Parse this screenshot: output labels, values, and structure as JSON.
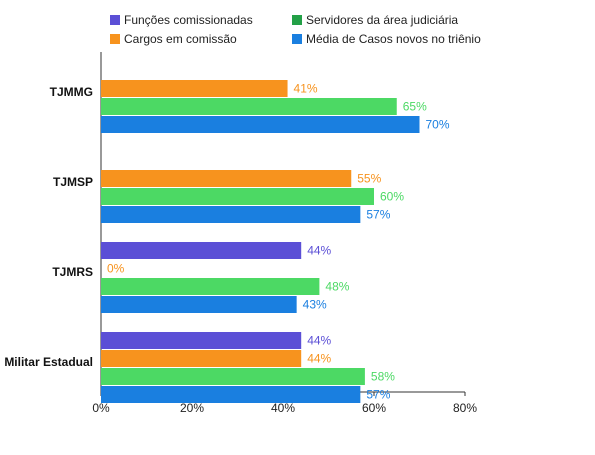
{
  "chart_data": {
    "type": "bar",
    "orientation": "horizontal",
    "categories": [
      "TJMMG",
      "TJMSP",
      "TJMRS",
      "Militar Estadual"
    ],
    "series": [
      {
        "name": "Funções comissionadas",
        "color": "#5b4fd6",
        "values": [
          null,
          null,
          44,
          44
        ],
        "labels": [
          "",
          "",
          "44%",
          "44%"
        ]
      },
      {
        "name": "Cargos em comissão",
        "color": "#f7931e",
        "values": [
          41,
          55,
          0,
          44
        ],
        "labels": [
          "41%",
          "55%",
          "0%",
          "44%"
        ]
      },
      {
        "name": "Servidores da área judiciária",
        "color": "#4cd964",
        "values": [
          65,
          60,
          48,
          58
        ],
        "labels": [
          "65%",
          "60%",
          "48%",
          "58%"
        ]
      },
      {
        "name": "Média de Casos novos no triênio",
        "color": "#1a7fe0",
        "values": [
          70,
          57,
          43,
          57
        ],
        "labels": [
          "70%",
          "57%",
          "43%",
          "57%"
        ]
      }
    ],
    "legend_labels": [
      "Funções comissionadas",
      "Servidores da área judiciária",
      "Cargos em comissão",
      "Média de Casos novos no triênio"
    ],
    "legend_colors": [
      "#5b4fd6",
      "#23a047",
      "#f7931e",
      "#1a7fe0"
    ],
    "x_ticks": [
      "0%",
      "20%",
      "40%",
      "60%",
      "80%"
    ],
    "xlim": [
      0,
      80
    ],
    "legend_position": "top",
    "grid": false,
    "label_colors": [
      "#5b4fd6",
      "#f7931e",
      "#4cd964",
      "#1a7fe0"
    ]
  }
}
